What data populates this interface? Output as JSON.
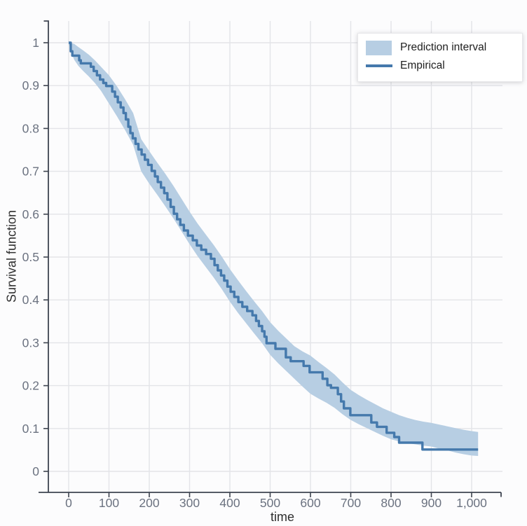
{
  "colors": {
    "band": "#b7cee3",
    "line": "#4579ac",
    "grid": "#e3e4e8",
    "axis": "#3e4450",
    "tick_label": "#6b7280",
    "axis_title": "#2e2e2e",
    "background": "#fcfcfd",
    "legend_bg": "#ffffff",
    "legend_border": "#e7e7ea",
    "legend_text": "#1f1f1f"
  },
  "chart_data": {
    "type": "line",
    "title": "",
    "xlabel": "time",
    "ylabel": "Survival function",
    "xlim": [
      -50,
      1077
    ],
    "ylim": [
      -0.05,
      1.05
    ],
    "grid": true,
    "x_ticks": {
      "values": [
        0,
        100,
        200,
        300,
        400,
        500,
        600,
        700,
        800,
        900,
        1000
      ],
      "labels": [
        "0",
        "100",
        "200",
        "300",
        "400",
        "500",
        "600",
        "700",
        "800",
        "900",
        "1,000"
      ]
    },
    "y_ticks": {
      "values": [
        0,
        0.1,
        0.2,
        0.3,
        0.4,
        0.5,
        0.6,
        0.7,
        0.8,
        0.9,
        1
      ],
      "labels": [
        "0",
        "0.1",
        "0.2",
        "0.3",
        "0.4",
        "0.5",
        "0.6",
        "0.7",
        "0.8",
        "0.9",
        "1"
      ]
    },
    "legend": {
      "position": "top-right",
      "entries": [
        {
          "label": "Prediction interval",
          "type": "band"
        },
        {
          "label": "Empirical",
          "type": "line"
        }
      ]
    },
    "series": [
      {
        "name": "Prediction interval",
        "kind": "band",
        "points_t_lower_upper": [
          [
            0,
            1.0,
            1.0
          ],
          [
            6,
            0.978,
            0.999
          ],
          [
            14,
            0.96,
            0.997
          ],
          [
            24,
            0.946,
            0.99
          ],
          [
            36,
            0.934,
            0.982
          ],
          [
            50,
            0.921,
            0.972
          ],
          [
            65,
            0.906,
            0.959
          ],
          [
            80,
            0.888,
            0.944
          ],
          [
            100,
            0.858,
            0.924
          ],
          [
            120,
            0.828,
            0.898
          ],
          [
            140,
            0.796,
            0.868
          ],
          [
            160,
            0.762,
            0.836
          ],
          [
            180,
            0.7,
            0.775
          ],
          [
            200,
            0.671,
            0.747
          ],
          [
            220,
            0.645,
            0.72
          ],
          [
            240,
            0.618,
            0.694
          ],
          [
            260,
            0.59,
            0.666
          ],
          [
            280,
            0.56,
            0.636
          ],
          [
            300,
            0.53,
            0.606
          ],
          [
            320,
            0.502,
            0.578
          ],
          [
            340,
            0.477,
            0.553
          ],
          [
            360,
            0.452,
            0.528
          ],
          [
            380,
            0.425,
            0.501
          ],
          [
            400,
            0.396,
            0.472
          ],
          [
            420,
            0.37,
            0.446
          ],
          [
            440,
            0.346,
            0.421
          ],
          [
            460,
            0.322,
            0.397
          ],
          [
            480,
            0.299,
            0.374
          ],
          [
            500,
            0.272,
            0.348
          ],
          [
            520,
            0.252,
            0.328
          ],
          [
            540,
            0.234,
            0.31
          ],
          [
            560,
            0.216,
            0.292
          ],
          [
            580,
            0.198,
            0.28
          ],
          [
            600,
            0.181,
            0.27
          ],
          [
            620,
            0.17,
            0.255
          ],
          [
            640,
            0.16,
            0.241
          ],
          [
            660,
            0.148,
            0.226
          ],
          [
            680,
            0.133,
            0.207
          ],
          [
            700,
            0.12,
            0.19
          ],
          [
            720,
            0.11,
            0.178
          ],
          [
            740,
            0.101,
            0.167
          ],
          [
            760,
            0.092,
            0.157
          ],
          [
            780,
            0.083,
            0.147
          ],
          [
            800,
            0.075,
            0.139
          ],
          [
            820,
            0.07,
            0.131
          ],
          [
            840,
            0.066,
            0.125
          ],
          [
            860,
            0.063,
            0.12
          ],
          [
            880,
            0.06,
            0.116
          ],
          [
            900,
            0.058,
            0.113
          ],
          [
            920,
            0.053,
            0.109
          ],
          [
            940,
            0.049,
            0.105
          ],
          [
            960,
            0.044,
            0.101
          ],
          [
            980,
            0.04,
            0.097
          ],
          [
            1000,
            0.037,
            0.094
          ],
          [
            1016,
            0.036,
            0.092
          ]
        ]
      },
      {
        "name": "Empirical",
        "kind": "step",
        "points_t_s": [
          [
            0,
            1.0
          ],
          [
            5,
            0.98
          ],
          [
            9,
            0.97
          ],
          [
            26,
            0.959
          ],
          [
            30,
            0.952
          ],
          [
            55,
            0.944
          ],
          [
            62,
            0.934
          ],
          [
            70,
            0.924
          ],
          [
            78,
            0.914
          ],
          [
            86,
            0.906
          ],
          [
            93,
            0.899
          ],
          [
            108,
            0.886
          ],
          [
            115,
            0.874
          ],
          [
            122,
            0.861
          ],
          [
            129,
            0.849
          ],
          [
            136,
            0.836
          ],
          [
            142,
            0.821
          ],
          [
            148,
            0.804
          ],
          [
            153,
            0.789
          ],
          [
            159,
            0.777
          ],
          [
            166,
            0.764
          ],
          [
            173,
            0.751
          ],
          [
            181,
            0.739
          ],
          [
            189,
            0.727
          ],
          [
            197,
            0.715
          ],
          [
            206,
            0.701
          ],
          [
            214,
            0.688
          ],
          [
            221,
            0.675
          ],
          [
            229,
            0.662
          ],
          [
            237,
            0.649
          ],
          [
            245,
            0.634
          ],
          [
            253,
            0.617
          ],
          [
            261,
            0.601
          ],
          [
            269,
            0.588
          ],
          [
            277,
            0.575
          ],
          [
            286,
            0.562
          ],
          [
            296,
            0.55
          ],
          [
            308,
            0.539
          ],
          [
            318,
            0.527
          ],
          [
            329,
            0.517
          ],
          [
            341,
            0.507
          ],
          [
            353,
            0.496
          ],
          [
            362,
            0.481
          ],
          [
            370,
            0.469
          ],
          [
            378,
            0.457
          ],
          [
            386,
            0.445
          ],
          [
            394,
            0.431
          ],
          [
            402,
            0.419
          ],
          [
            411,
            0.407
          ],
          [
            421,
            0.395
          ],
          [
            431,
            0.384
          ],
          [
            443,
            0.374
          ],
          [
            456,
            0.364
          ],
          [
            465,
            0.351
          ],
          [
            472,
            0.339
          ],
          [
            480,
            0.327
          ],
          [
            486,
            0.314
          ],
          [
            491,
            0.299
          ],
          [
            513,
            0.286
          ],
          [
            539,
            0.266
          ],
          [
            551,
            0.257
          ],
          [
            583,
            0.246
          ],
          [
            598,
            0.231
          ],
          [
            630,
            0.216
          ],
          [
            642,
            0.201
          ],
          [
            651,
            0.195
          ],
          [
            668,
            0.18
          ],
          [
            676,
            0.163
          ],
          [
            683,
            0.147
          ],
          [
            699,
            0.131
          ],
          [
            751,
            0.114
          ],
          [
            765,
            0.104
          ],
          [
            789,
            0.09
          ],
          [
            808,
            0.08
          ],
          [
            820,
            0.067
          ],
          [
            878,
            0.051
          ],
          [
            1016,
            0.051
          ]
        ]
      }
    ]
  }
}
